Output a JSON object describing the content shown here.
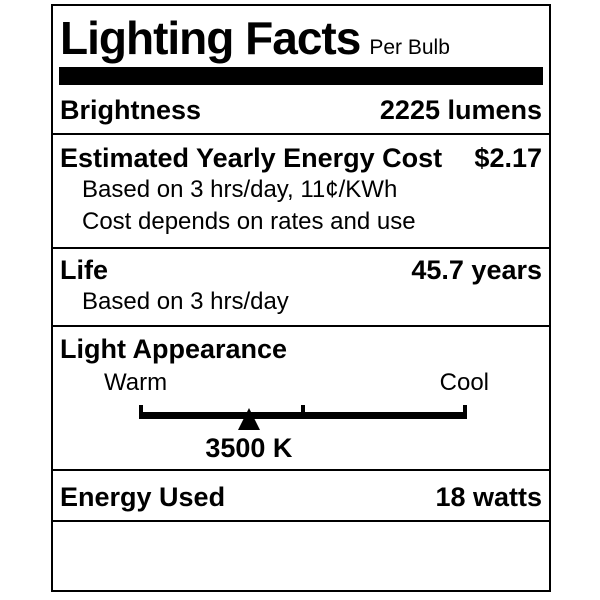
{
  "label": {
    "title": "Lighting Facts",
    "subtitle": "Per Bulb",
    "brightness": {
      "label": "Brightness",
      "value": "2225 lumens"
    },
    "energy_cost": {
      "label": "Estimated Yearly Energy Cost",
      "value": "$2.17",
      "note1": "Based on 3 hrs/day, 11¢/KWh",
      "note2": "Cost depends on rates and use"
    },
    "life": {
      "label": "Life",
      "value": "45.7 years",
      "note1": "Based on 3 hrs/day"
    },
    "light_appearance": {
      "label": "Light Appearance",
      "warm_label": "Warm",
      "cool_label": "Cool",
      "kelvin_value": "3500 K",
      "pointer_position_pct": 33.5,
      "mid_tick_position_pct": 50
    },
    "energy_used": {
      "label": "Energy Used",
      "value": "18 watts"
    },
    "colors": {
      "border": "#000000",
      "background": "#ffffff",
      "text": "#000000",
      "bar": "#000000"
    }
  }
}
